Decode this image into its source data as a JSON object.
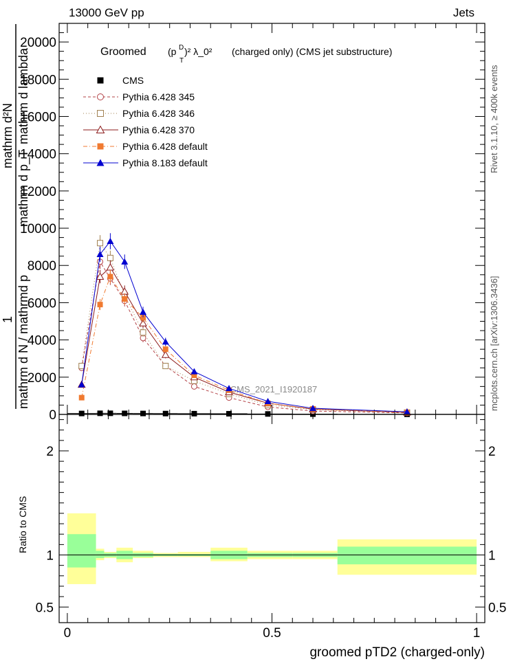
{
  "header": {
    "left": "13000 GeV pp",
    "right": "Jets"
  },
  "side_labels": {
    "rivet": "Rivet 3.1.10, ≥ 400k events",
    "mcplots": "mcplots.cern.ch [arXiv:1306.3436]"
  },
  "chart_data": {
    "type": "line",
    "title_parts": {
      "pre": "Groomed",
      "formula": "(p",
      "sup_d": "D",
      "sub_t": "T",
      "post": ")² λ_0²",
      "tail": "(charged only) (CMS jet substructure)"
    },
    "title": "Groomed (p_T^D)^2 λ_0^2 (charged only) (CMS jet substructure)",
    "ylabel": "1 / mathrm d N / mathrmd p ... mathrm d^2N / mathrm d p_T mathrm d lambda",
    "ylabel_lines": [
      "1",
      "mathrm d N / mathrmd p",
      "mathrm d p_T",
      "mathrm d lambda",
      "mathrm d²N"
    ],
    "xlabel": "groomed pTD2 (charged-only)",
    "watermark": "CMS_2021_I1920187",
    "xlim": [
      -0.02,
      1.02
    ],
    "ylim": [
      0,
      21000
    ],
    "yticks": [
      0,
      2000,
      4000,
      6000,
      8000,
      10000,
      12000,
      14000,
      16000,
      18000,
      20000
    ],
    "ytick_labels": [
      "0",
      "2000",
      "4000",
      "6000",
      "8000",
      "10000",
      "12000",
      "14000",
      "16000",
      "18000",
      "20000"
    ],
    "xticks": [
      0,
      0.5,
      1
    ],
    "xtick_labels": [
      "0",
      "0.5",
      "1"
    ],
    "x": [
      0.035,
      0.08,
      0.105,
      0.14,
      0.185,
      0.24,
      0.31,
      0.395,
      0.49,
      0.6,
      0.83
    ],
    "xerr_bins": [
      [
        0,
        0.07
      ],
      [
        0.07,
        0.09
      ],
      [
        0.09,
        0.12
      ],
      [
        0.12,
        0.16
      ],
      [
        0.16,
        0.21
      ],
      [
        0.21,
        0.27
      ],
      [
        0.27,
        0.35
      ],
      [
        0.35,
        0.44
      ],
      [
        0.44,
        0.55
      ],
      [
        0.55,
        0.66
      ],
      [
        0.66,
        1.0
      ]
    ],
    "series": [
      {
        "name": "CMS",
        "values": [
          50,
          60,
          60,
          55,
          50,
          45,
          40,
          35,
          25,
          15,
          5
        ],
        "color": "#000000",
        "marker": "square-filled",
        "dash": "none"
      },
      {
        "name": "Pythia 6.428 345",
        "values": [
          2500,
          8200,
          7300,
          6100,
          4100,
          2600,
          1500,
          900,
          400,
          180,
          80
        ],
        "color": "#b34045",
        "marker": "circle-open",
        "dash": "4,3"
      },
      {
        "name": "Pythia 6.428 346",
        "values": [
          2600,
          9200,
          8400,
          6400,
          4400,
          2600,
          1800,
          1100,
          500,
          260,
          100
        ],
        "color": "#a08050",
        "marker": "square-open",
        "dash": "1,3"
      },
      {
        "name": "Pythia 6.428 370",
        "values": [
          1600,
          7400,
          7900,
          6600,
          4900,
          3200,
          2000,
          1200,
          600,
          280,
          110
        ],
        "color": "#8b1a1a",
        "marker": "triangle-open",
        "dash": "none"
      },
      {
        "name": "Pythia 6.428 default",
        "values": [
          900,
          5900,
          7400,
          6200,
          5200,
          3500,
          2100,
          1300,
          600,
          300,
          110
        ],
        "color": "#f07a30",
        "marker": "square-filled",
        "dash": "6,3,1,3"
      },
      {
        "name": "Pythia 8.183 default",
        "values": [
          1600,
          8600,
          9300,
          8200,
          5500,
          3900,
          2300,
          1400,
          700,
          330,
          140
        ],
        "color": "#0000d0",
        "marker": "triangle-filled",
        "dash": "none"
      }
    ],
    "ratio": {
      "ylabel": "Ratio to CMS",
      "ylim": [
        0.35,
        2.35
      ],
      "yticks": [
        0.5,
        1,
        2
      ],
      "ytick_labels": [
        "0.5",
        "1",
        "2"
      ],
      "bands": [
        {
          "x0": 0.0,
          "x1": 0.07,
          "green": [
            0.88,
            1.2
          ],
          "yellow": [
            0.72,
            1.4
          ]
        },
        {
          "x0": 0.07,
          "x1": 0.09,
          "green": [
            0.97,
            1.04
          ],
          "yellow": [
            0.95,
            1.06
          ]
        },
        {
          "x0": 0.09,
          "x1": 0.12,
          "green": [
            0.98,
            1.02
          ],
          "yellow": [
            0.97,
            1.03
          ]
        },
        {
          "x0": 0.12,
          "x1": 0.16,
          "green": [
            0.96,
            1.04
          ],
          "yellow": [
            0.93,
            1.07
          ]
        },
        {
          "x0": 0.16,
          "x1": 0.21,
          "green": [
            0.98,
            1.02
          ],
          "yellow": [
            0.97,
            1.04
          ]
        },
        {
          "x0": 0.21,
          "x1": 0.27,
          "green": [
            0.99,
            1.01
          ],
          "yellow": [
            0.98,
            1.02
          ]
        },
        {
          "x0": 0.27,
          "x1": 0.35,
          "green": [
            0.99,
            1.01
          ],
          "yellow": [
            0.98,
            1.03
          ]
        },
        {
          "x0": 0.35,
          "x1": 0.44,
          "green": [
            0.96,
            1.04
          ],
          "yellow": [
            0.94,
            1.07
          ]
        },
        {
          "x0": 0.44,
          "x1": 0.55,
          "green": [
            0.98,
            1.02
          ],
          "yellow": [
            0.96,
            1.04
          ]
        },
        {
          "x0": 0.55,
          "x1": 0.66,
          "green": [
            0.98,
            1.02
          ],
          "yellow": [
            0.96,
            1.04
          ]
        },
        {
          "x0": 0.66,
          "x1": 1.0,
          "green": [
            0.91,
            1.08
          ],
          "yellow": [
            0.81,
            1.15
          ]
        }
      ]
    }
  },
  "colors": {
    "green": "#99ff99",
    "yellow": "#ffff99",
    "axis": "#000000",
    "side_text": "#555555",
    "watermark": "#8a8a8a"
  }
}
